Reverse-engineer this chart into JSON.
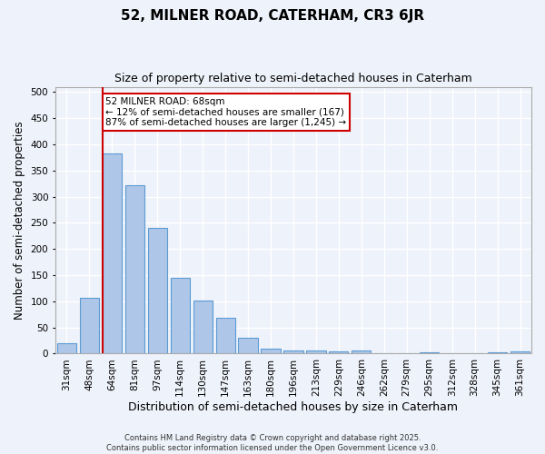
{
  "title": "52, MILNER ROAD, CATERHAM, CR3 6JR",
  "subtitle": "Size of property relative to semi-detached houses in Caterham",
  "xlabel": "Distribution of semi-detached houses by size in Caterham",
  "ylabel": "Number of semi-detached properties",
  "categories": [
    "31sqm",
    "48sqm",
    "64sqm",
    "81sqm",
    "97sqm",
    "114sqm",
    "130sqm",
    "147sqm",
    "163sqm",
    "180sqm",
    "196sqm",
    "213sqm",
    "229sqm",
    "246sqm",
    "262sqm",
    "279sqm",
    "295sqm",
    "312sqm",
    "328sqm",
    "345sqm",
    "361sqm"
  ],
  "values": [
    20,
    107,
    383,
    322,
    241,
    144,
    102,
    68,
    30,
    10,
    6,
    6,
    5,
    6,
    0,
    0,
    3,
    0,
    0,
    3,
    4
  ],
  "bar_color": "#aec6e8",
  "bar_edge_color": "#5b9bd5",
  "red_line_index": 2,
  "red_line_color": "#cc0000",
  "annotation_text": "52 MILNER ROAD: 68sqm\n← 12% of semi-detached houses are smaller (167)\n87% of semi-detached houses are larger (1,245) →",
  "annotation_box_color": "#ffffff",
  "annotation_box_edge_color": "#cc0000",
  "ylim": [
    0,
    510
  ],
  "yticks": [
    0,
    50,
    100,
    150,
    200,
    250,
    300,
    350,
    400,
    450,
    500
  ],
  "background_color": "#eef2fa",
  "grid_color": "#ffffff",
  "footer": "Contains HM Land Registry data © Crown copyright and database right 2025.\nContains public sector information licensed under the Open Government Licence v3.0.",
  "title_fontsize": 11,
  "subtitle_fontsize": 9,
  "xlabel_fontsize": 9,
  "ylabel_fontsize": 8.5,
  "tick_fontsize": 7.5,
  "footer_fontsize": 6,
  "annotation_fontsize": 7.5
}
